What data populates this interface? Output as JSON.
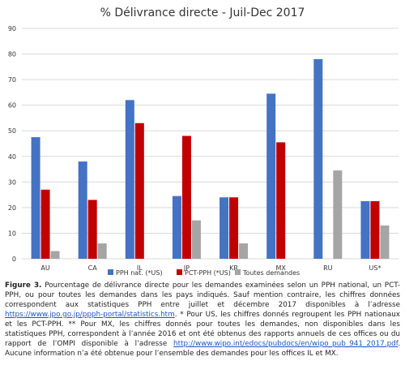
{
  "chart_data": {
    "type": "bar",
    "title": "% Délivrance directe - Juil-Dec 2017",
    "categories": [
      "AU",
      "CA",
      "IL",
      "JP",
      "KR",
      "MX",
      "RU",
      "US*"
    ],
    "ylim": [
      0,
      90
    ],
    "yticks": [
      0,
      10,
      20,
      30,
      40,
      50,
      60,
      70,
      80,
      90
    ],
    "grid": true,
    "legend_position": "bottom",
    "series": [
      {
        "name": "PPH nat. (*US)",
        "color": "#4472c4",
        "values": [
          47.5,
          38,
          62,
          24.5,
          24,
          64.5,
          78,
          22.5
        ]
      },
      {
        "name": "PCT-PPH (*US)",
        "color": "#c00000",
        "values": [
          27,
          23,
          53,
          48,
          24,
          45.5,
          null,
          22.5
        ]
      },
      {
        "name": "Toutes demandes",
        "color": "#a5a5a5",
        "values": [
          3,
          6,
          null,
          15,
          6,
          null,
          34.5,
          13
        ]
      }
    ]
  },
  "caption": {
    "label": "Figure 3.",
    "part1": " Pourcentage de délivrance directe pour les demandes examinées selon un PPH national, un PCT-PPH, ou pour toutes les demandes dans les pays indiqués. Sauf mention contraire, les chiffres données correspondent aux statistiques PPH entre juillet et décembre 2017 disponibles à l’adresse ",
    "link1": "https://www.jpo.go.jp/ppph-portal/statistics.htm",
    "part2": ". * Pour US, les chiffres donnés regroupent les PPH nationaux et les PCT-PPH. ** Pour MX, les chiffres donnés pour toutes les demandes, non disponibles dans les statistiques PPH, correspondent à l’année 2016 et ont été obtenus des rapports annuels de ces offices ou du rapport de l’OMPI disponible à l’adresse ",
    "link2": "http://www.wipo.int/edocs/pubdocs/en/wipo_pub_941_2017.pdf",
    "part3": ". Aucune information n’a été obtenue pour l’ensemble des demandes pour les offices IL et MX."
  }
}
